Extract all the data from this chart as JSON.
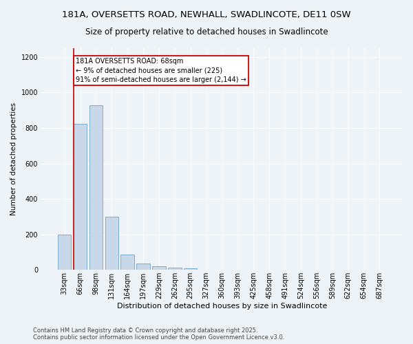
{
  "title1": "181A, OVERSETTS ROAD, NEWHALL, SWADLINCOTE, DE11 0SW",
  "title2": "Size of property relative to detached houses in Swadlincote",
  "xlabel": "Distribution of detached houses by size in Swadlincote",
  "ylabel": "Number of detached properties",
  "bar_color": "#c8d8e8",
  "bar_edge_color": "#7aabcf",
  "annotation_line_color": "#cc0000",
  "annotation_box_color": "#cc0000",
  "annotation_text": "181A OVERSETTS ROAD: 68sqm\n← 9% of detached houses are smaller (225)\n91% of semi-detached houses are larger (2,144) →",
  "property_bin_index": 1,
  "categories": [
    "33sqm",
    "66sqm",
    "98sqm",
    "131sqm",
    "164sqm",
    "197sqm",
    "229sqm",
    "262sqm",
    "295sqm",
    "327sqm",
    "360sqm",
    "393sqm",
    "425sqm",
    "458sqm",
    "491sqm",
    "524sqm",
    "556sqm",
    "589sqm",
    "622sqm",
    "654sqm",
    "687sqm"
  ],
  "values": [
    197,
    822,
    928,
    298,
    88,
    37,
    21,
    13,
    8,
    0,
    0,
    0,
    0,
    0,
    0,
    0,
    0,
    0,
    0,
    0,
    0
  ],
  "ylim": [
    0,
    1250
  ],
  "yticks": [
    0,
    200,
    400,
    600,
    800,
    1000,
    1200
  ],
  "footer": "Contains HM Land Registry data © Crown copyright and database right 2025.\nContains public sector information licensed under the Open Government Licence v3.0.",
  "bg_color": "#eef3f8",
  "plot_bg_color": "#eef3f8",
  "title1_fontsize": 9.5,
  "title2_fontsize": 8.5,
  "xlabel_fontsize": 8,
  "ylabel_fontsize": 7.5,
  "tick_fontsize": 7,
  "footer_fontsize": 6,
  "annotation_fontsize": 7
}
